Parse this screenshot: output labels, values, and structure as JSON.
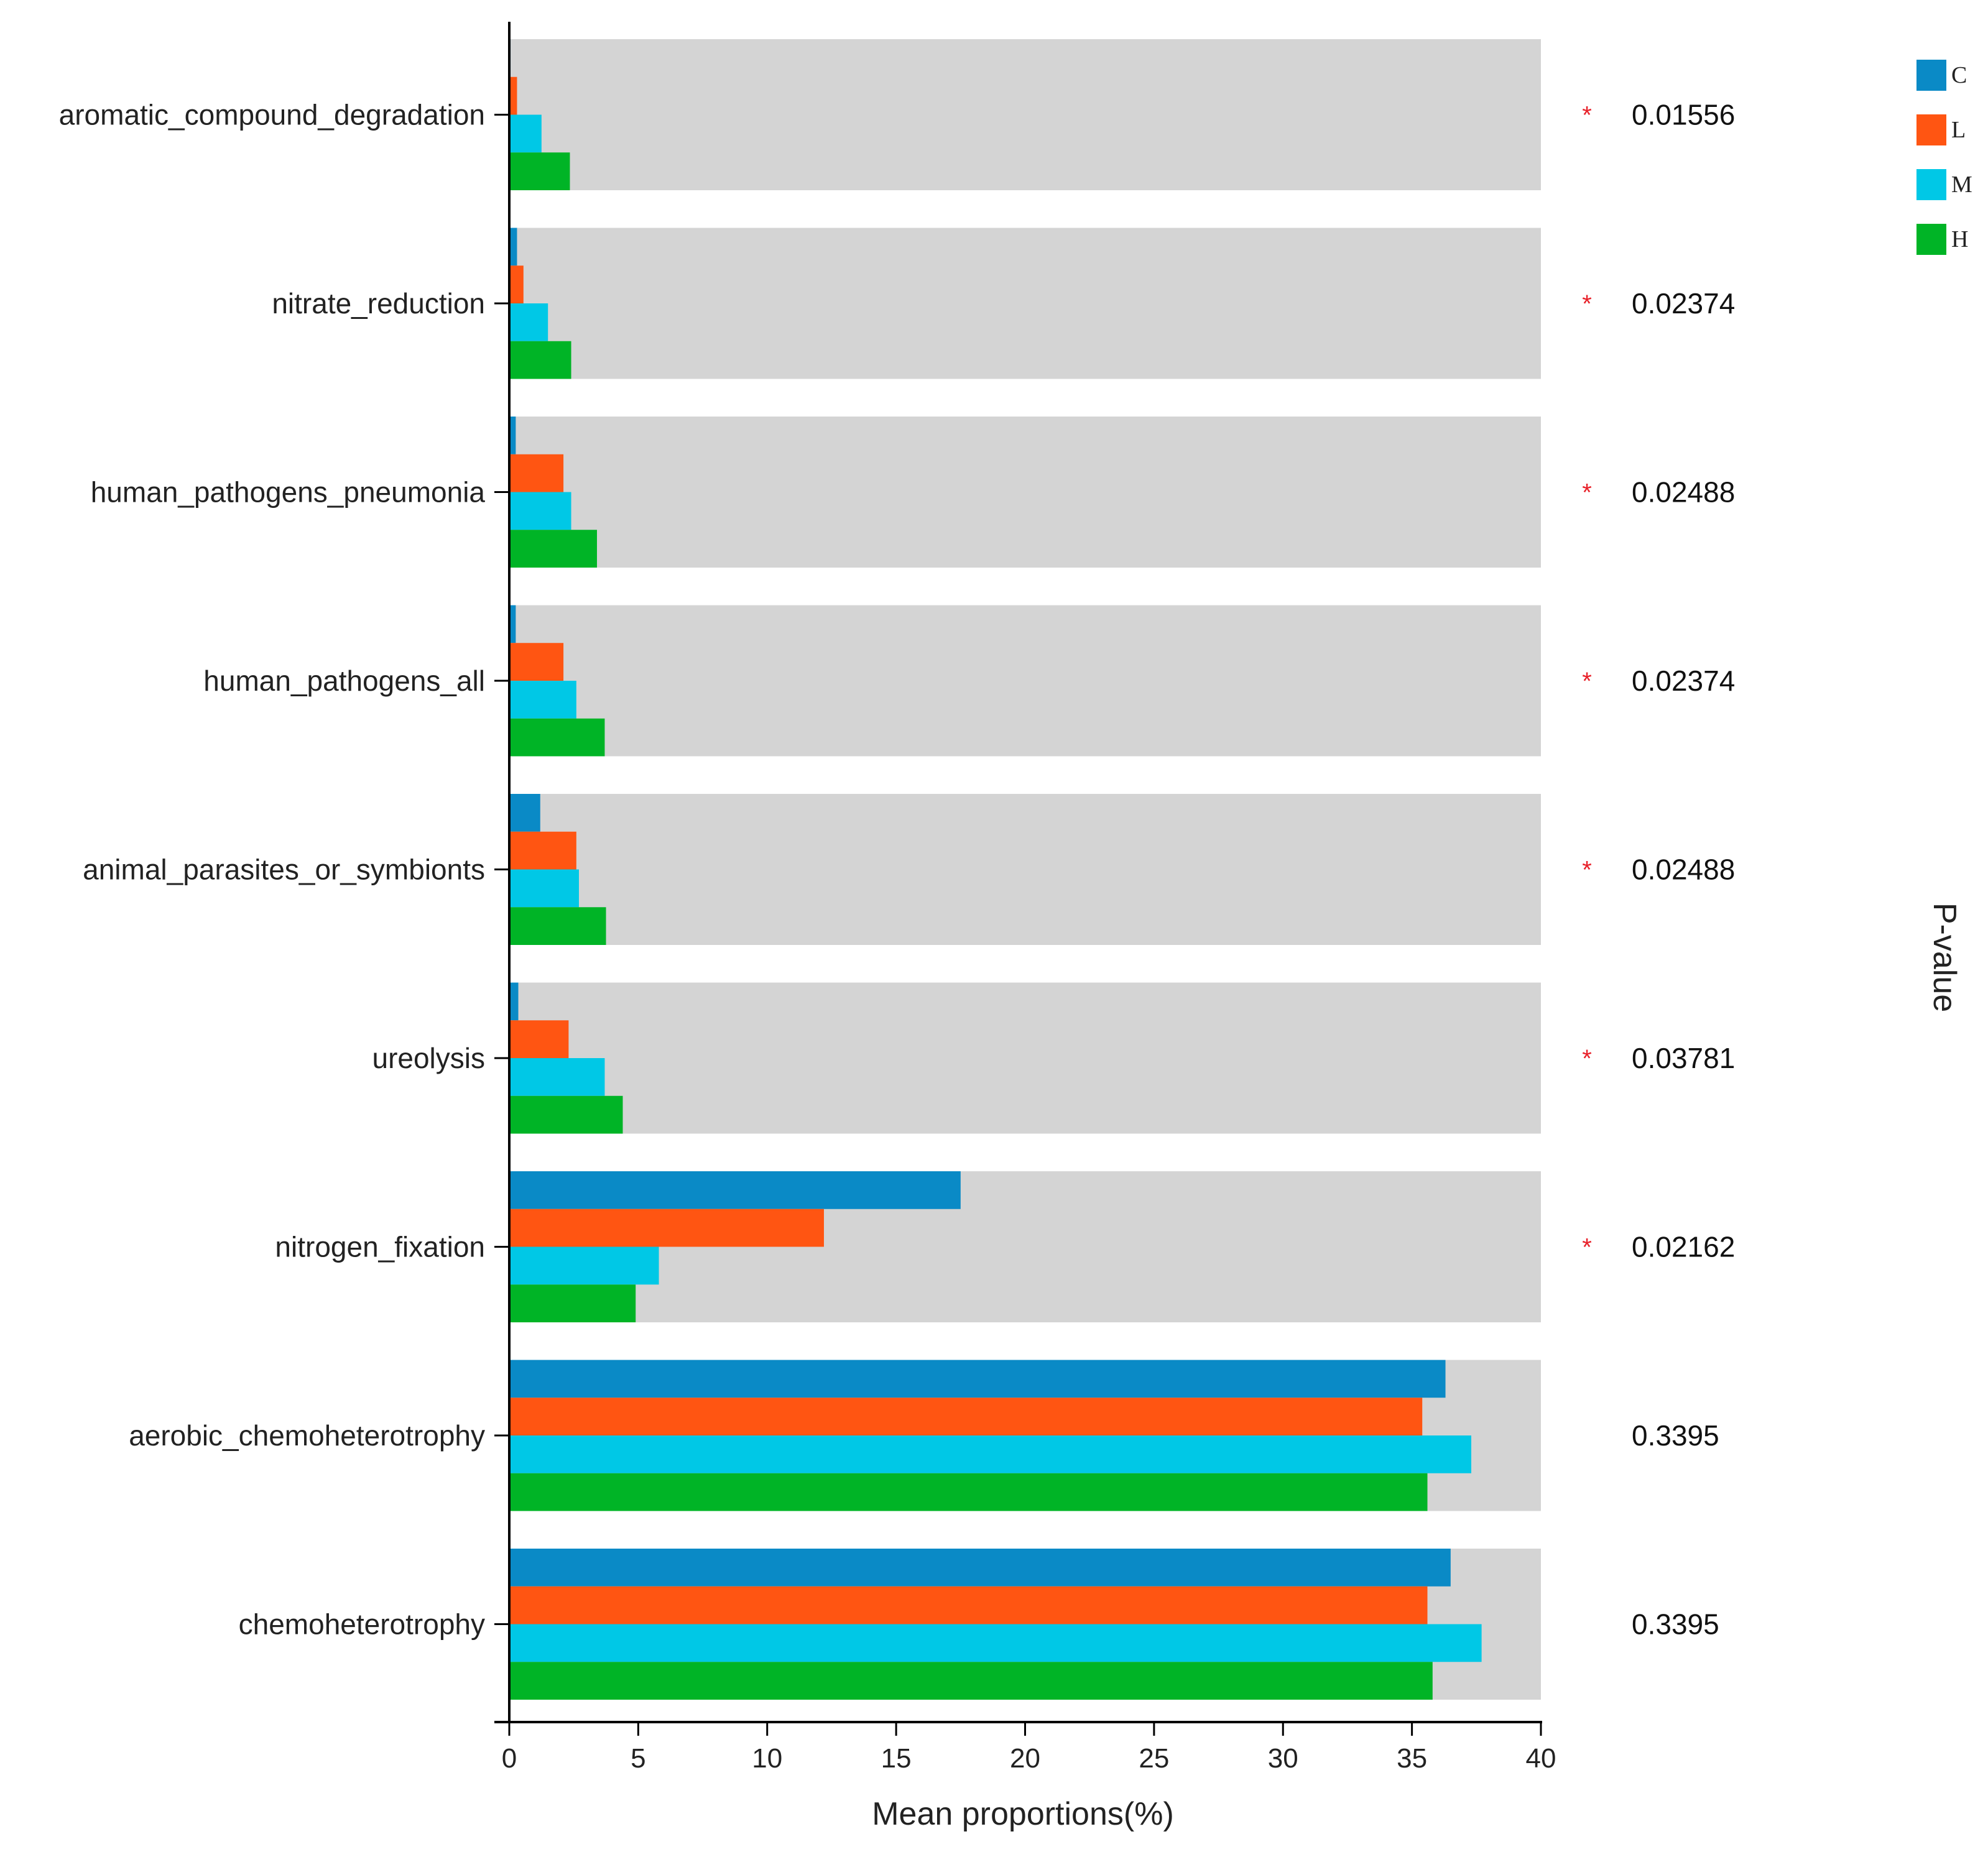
{
  "chart_data": {
    "type": "bar",
    "orientation": "horizontal",
    "categories": [
      "aromatic_compound_degradation",
      "nitrate_reduction",
      "human_pathogens_pneumonia",
      "human_pathogens_all",
      "animal_parasites_or_symbionts",
      "ureolysis",
      "nitrogen_fixation",
      "aerobic_chemoheterotrophy",
      "chemoheterotrophy"
    ],
    "series": [
      {
        "name": "C",
        "color": "#0a8ac6",
        "values": [
          0.05,
          0.3,
          0.25,
          0.25,
          1.2,
          0.35,
          17.5,
          36.3,
          36.5
        ]
      },
      {
        "name": "L",
        "color": "#ff5512",
        "values": [
          0.3,
          0.55,
          2.1,
          2.1,
          2.6,
          2.3,
          12.2,
          35.4,
          35.6
        ]
      },
      {
        "name": "M",
        "color": "#00c8e6",
        "values": [
          1.25,
          1.5,
          2.4,
          2.6,
          2.7,
          3.7,
          5.8,
          37.3,
          37.7
        ]
      },
      {
        "name": "H",
        "color": "#00b426",
        "values": [
          2.35,
          2.4,
          3.4,
          3.7,
          3.75,
          4.4,
          4.9,
          35.6,
          35.8
        ]
      }
    ],
    "p_values": [
      "0.01556",
      "0.02374",
      "0.02488",
      "0.02374",
      "0.02488",
      "0.03781",
      "0.02162",
      "0.3395",
      "0.3395"
    ],
    "significance": [
      "*",
      "*",
      "*",
      "*",
      "*",
      "*",
      "*",
      "",
      ""
    ],
    "xlabel": "Mean proportions(%)",
    "right_label": "P-value",
    "xlim": [
      0,
      40
    ],
    "xticks": [
      "0",
      "5",
      "10",
      "15",
      "20",
      "25",
      "30",
      "35",
      "40"
    ],
    "legend_position": "top-right",
    "background_band_color": "#d4d4d4"
  }
}
